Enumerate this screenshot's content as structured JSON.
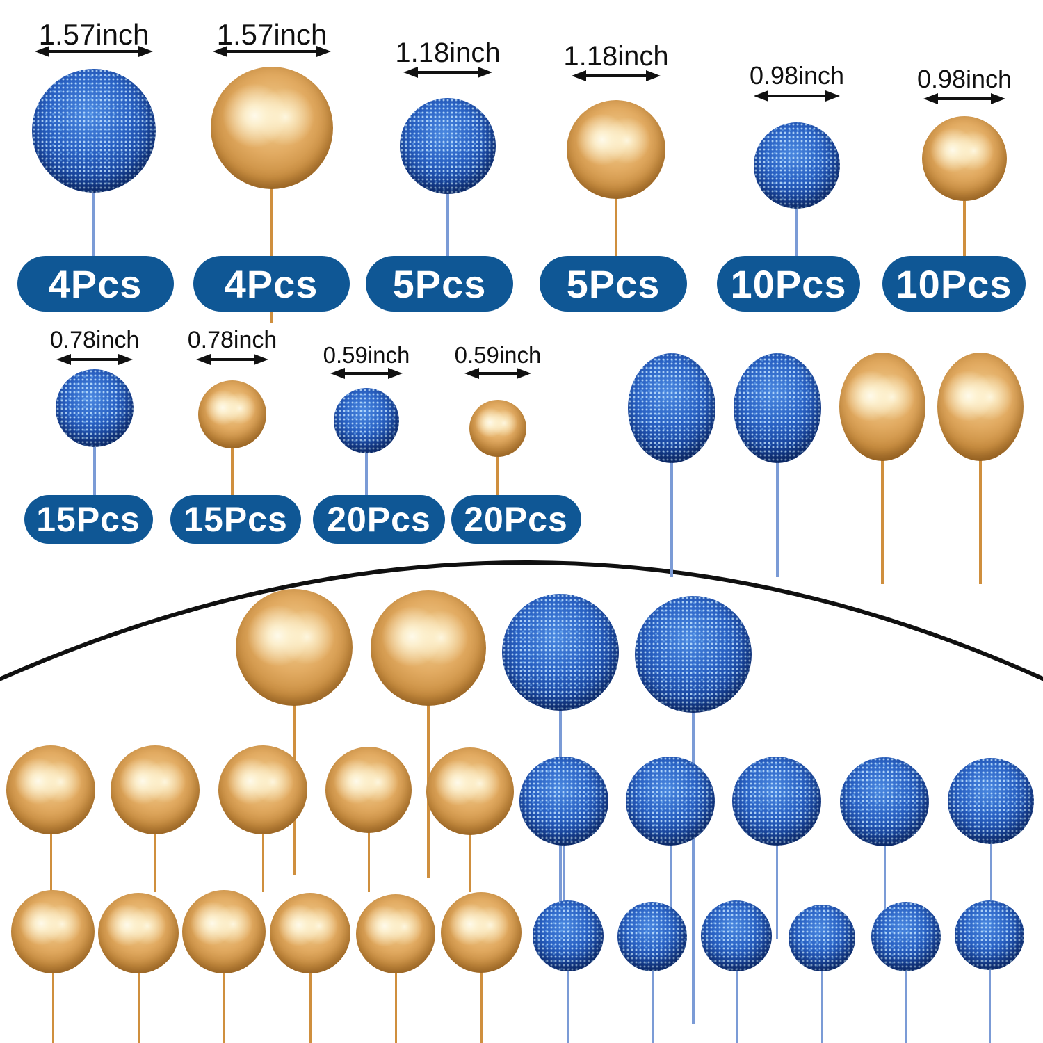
{
  "colors": {
    "badge_bg": "#0f5795",
    "badge_text": "#ffffff",
    "label_text": "#101010",
    "arc_stroke": "#101010",
    "blue_ball_light": "#4a87df",
    "blue_ball_mid": "#2a62c4",
    "blue_ball_dark": "#0e2f75",
    "gold_ball_light": "#f3d296",
    "gold_ball_mid": "#e2ab62",
    "gold_ball_dark": "#a8702a",
    "blue_stick": "#7b9bd6",
    "gold_stick": "#cf8f3e"
  },
  "size_chart": {
    "units": [
      {
        "color": "blue",
        "size_label": "1.57inch",
        "count_label": "4Pcs"
      },
      {
        "color": "gold",
        "size_label": "1.57inch",
        "count_label": "4Pcs"
      },
      {
        "color": "blue",
        "size_label": "1.18inch",
        "count_label": "5Pcs"
      },
      {
        "color": "gold",
        "size_label": "1.18inch",
        "count_label": "5Pcs"
      },
      {
        "color": "blue",
        "size_label": "0.98inch",
        "count_label": "10Pcs"
      },
      {
        "color": "gold",
        "size_label": "0.98inch",
        "count_label": "10Pcs"
      },
      {
        "color": "blue",
        "size_label": "0.78inch",
        "count_label": "15Pcs"
      },
      {
        "color": "gold",
        "size_label": "0.78inch",
        "count_label": "15Pcs"
      },
      {
        "color": "blue",
        "size_label": "0.59inch",
        "count_label": "20Pcs"
      },
      {
        "color": "gold",
        "size_label": "0.59inch",
        "count_label": "20Pcs"
      }
    ]
  },
  "sample_picks": {
    "balls": [
      {
        "color": "blue"
      },
      {
        "color": "blue"
      },
      {
        "color": "gold"
      },
      {
        "color": "gold"
      }
    ]
  },
  "magnified_view": {
    "rows": [
      {
        "size": "large",
        "balls": [
          {
            "color": "gold"
          },
          {
            "color": "gold"
          },
          {
            "color": "blue"
          },
          {
            "color": "blue"
          }
        ]
      },
      {
        "size": "medium",
        "balls": [
          {
            "color": "gold"
          },
          {
            "color": "gold"
          },
          {
            "color": "gold"
          },
          {
            "color": "gold"
          },
          {
            "color": "gold"
          },
          {
            "color": "blue"
          },
          {
            "color": "blue"
          },
          {
            "color": "blue"
          },
          {
            "color": "blue"
          },
          {
            "color": "blue"
          }
        ]
      },
      {
        "size": "small",
        "balls": [
          {
            "color": "gold"
          },
          {
            "color": "gold"
          },
          {
            "color": "gold"
          },
          {
            "color": "gold"
          },
          {
            "color": "gold"
          },
          {
            "color": "gold"
          },
          {
            "color": "blue"
          },
          {
            "color": "blue"
          },
          {
            "color": "blue"
          },
          {
            "color": "blue"
          },
          {
            "color": "blue"
          },
          {
            "color": "blue"
          }
        ]
      }
    ]
  }
}
